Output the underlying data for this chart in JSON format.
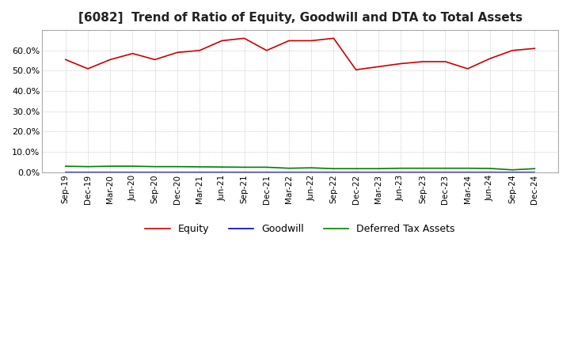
{
  "title": "[6082]  Trend of Ratio of Equity, Goodwill and DTA to Total Assets",
  "x_labels": [
    "Sep-19",
    "Dec-19",
    "Mar-20",
    "Jun-20",
    "Sep-20",
    "Dec-20",
    "Mar-21",
    "Jun-21",
    "Sep-21",
    "Dec-21",
    "Mar-22",
    "Jun-22",
    "Sep-22",
    "Dec-22",
    "Mar-23",
    "Jun-23",
    "Sep-23",
    "Dec-23",
    "Mar-24",
    "Jun-24",
    "Sep-24",
    "Dec-24"
  ],
  "equity": [
    0.555,
    0.51,
    0.555,
    0.585,
    0.555,
    0.59,
    0.6,
    0.648,
    0.66,
    0.6,
    0.648,
    0.648,
    0.66,
    0.505,
    0.52,
    0.535,
    0.545,
    0.545,
    0.51,
    0.56,
    0.6,
    0.61
  ],
  "goodwill": [
    0.001,
    0.001,
    0.001,
    0.001,
    0.001,
    0.001,
    0.001,
    0.001,
    0.001,
    0.001,
    0.001,
    0.001,
    0.001,
    0.001,
    0.001,
    0.001,
    0.001,
    0.001,
    0.001,
    0.001,
    0.001,
    0.001
  ],
  "dta": [
    0.03,
    0.028,
    0.03,
    0.03,
    0.028,
    0.028,
    0.027,
    0.026,
    0.025,
    0.025,
    0.02,
    0.022,
    0.018,
    0.018,
    0.018,
    0.02,
    0.02,
    0.02,
    0.02,
    0.019,
    0.012,
    0.018
  ],
  "equity_color": "#cc0000",
  "goodwill_color": "#0000cc",
  "dta_color": "#008000",
  "ylim": [
    0.0,
    0.7
  ],
  "yticks": [
    0.0,
    0.1,
    0.2,
    0.3,
    0.4,
    0.5,
    0.6
  ],
  "bg_color": "#ffffff",
  "title_fontsize": 11,
  "legend_labels": [
    "Equity",
    "Goodwill",
    "Deferred Tax Assets"
  ]
}
